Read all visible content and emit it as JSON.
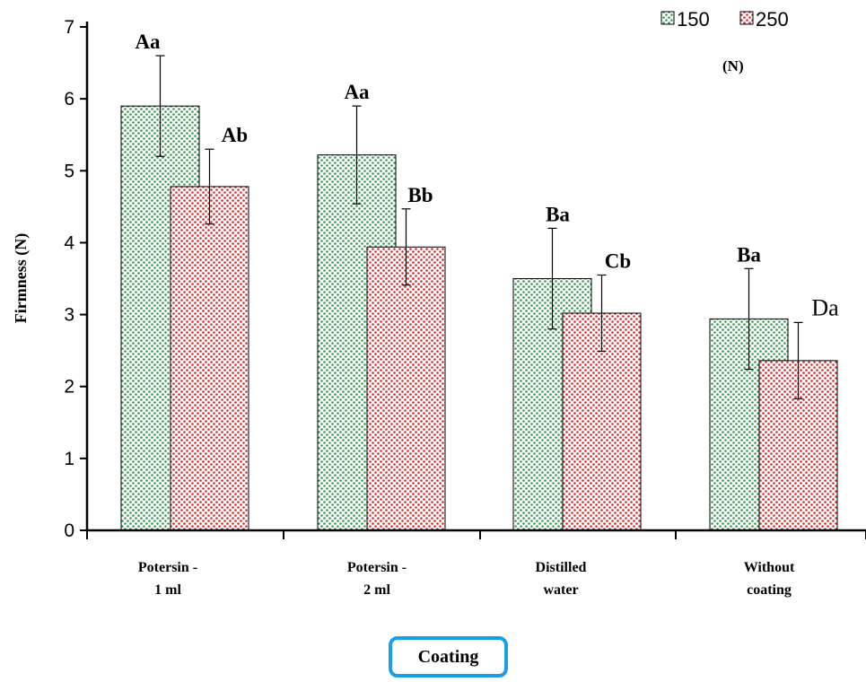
{
  "chart_data": {
    "type": "bar",
    "xlabel": "Coating",
    "ylabel": "Firmness (N)",
    "ylim": [
      0,
      7
    ],
    "yticks": [
      "0",
      "1",
      "2",
      "3",
      "4",
      "5",
      "6",
      "7"
    ],
    "categories": [
      [
        "Potersin -",
        "1 ml"
      ],
      [
        "Potersin -",
        "2 ml"
      ],
      [
        "Distilled",
        "water"
      ],
      [
        "Without",
        "coating"
      ]
    ],
    "legend": {
      "position": "top-right",
      "unit": "(N)"
    },
    "series": [
      {
        "name": "150",
        "color": "#2e9e4a",
        "values": [
          5.9,
          5.22,
          3.5,
          2.94
        ],
        "errors": [
          0.7,
          0.68,
          0.7,
          0.7
        ],
        "labels": [
          "Aa",
          "Aa",
          "Ba",
          "Ba"
        ]
      },
      {
        "name": "250",
        "color": "#e02626",
        "values": [
          4.78,
          3.94,
          3.02,
          2.36
        ],
        "errors": [
          0.52,
          0.53,
          0.53,
          0.53
        ],
        "labels": [
          "Ab",
          "Bb",
          "Cb",
          "Da"
        ]
      }
    ]
  }
}
